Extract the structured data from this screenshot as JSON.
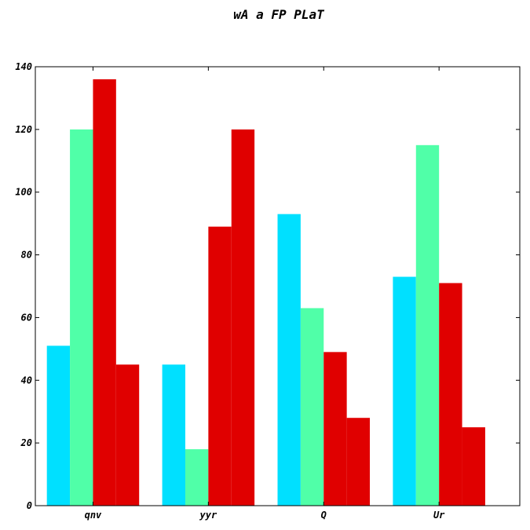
{
  "chart_data": {
    "type": "bar",
    "title": "wA a FP PLaT",
    "xlabel": "",
    "ylabel": "",
    "categories": [
      "qnv",
      "yyr",
      "Q",
      "Ur"
    ],
    "series": [
      {
        "color": "#00e0ff",
        "values": [
          51,
          45,
          93,
          73
        ]
      },
      {
        "color": "#50ffa8",
        "values": [
          120,
          18,
          63,
          115
        ]
      },
      {
        "color": "#e00000",
        "values": [
          136,
          89,
          49,
          71
        ]
      },
      {
        "color": "#e00000",
        "values": [
          45,
          120,
          28,
          25
        ]
      }
    ],
    "ylim": [
      0,
      140
    ],
    "yticks": [
      0,
      20,
      40,
      60,
      80,
      100,
      120,
      140
    ],
    "grid": false,
    "legend": "none"
  }
}
